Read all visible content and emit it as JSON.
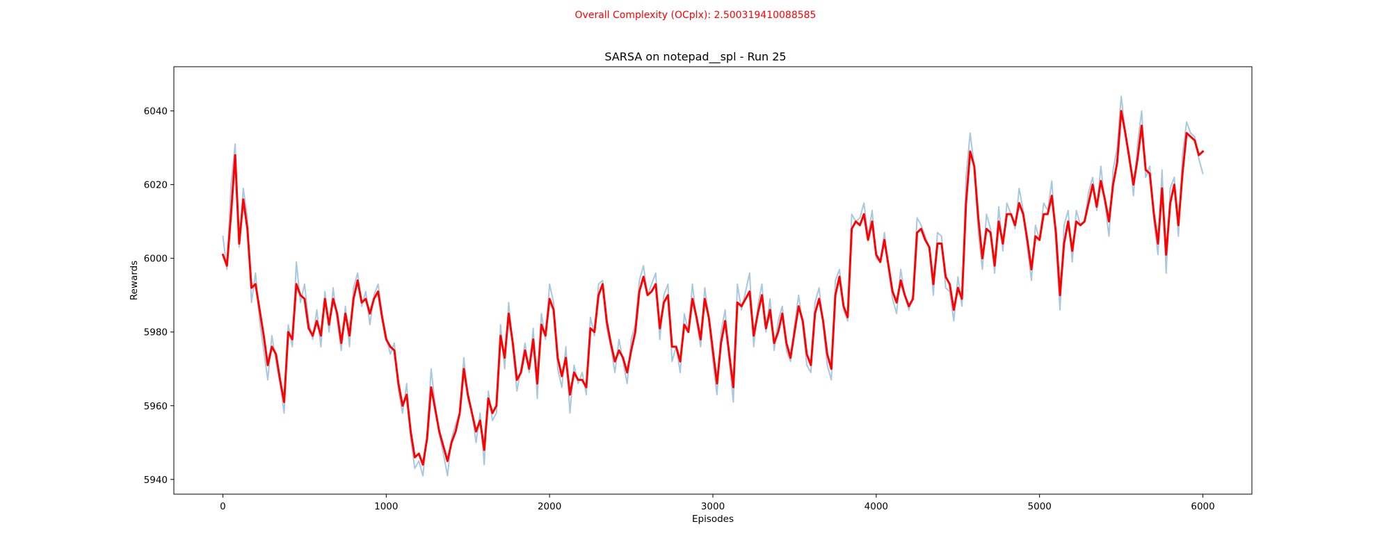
{
  "chart_data": {
    "type": "line",
    "suptitle": "Overall Complexity (OCplx): 2.500319410088585",
    "title": "SARSA on notepad__spl - Run 25",
    "xlabel": "Episodes",
    "ylabel": "Rewards",
    "xlim": [
      -300,
      6300
    ],
    "ylim": [
      5936,
      6052
    ],
    "xticks": [
      0,
      1000,
      2000,
      3000,
      4000,
      5000,
      6000
    ],
    "yticks": [
      5940,
      5960,
      5980,
      6000,
      6020,
      6040
    ],
    "colors": {
      "suptitle": "#ff0000",
      "raw": "#a8c8e0",
      "smoothed": "#ff0000",
      "axes": "#000000"
    },
    "grid": false,
    "legend": "none",
    "series": [
      {
        "role": "raw",
        "x": [
          0,
          25,
          50,
          75,
          100,
          125,
          150,
          175,
          200,
          225,
          250,
          275,
          300,
          325,
          350,
          375,
          400,
          425,
          450,
          475,
          500,
          525,
          550,
          575,
          600,
          625,
          650,
          675,
          700,
          725,
          750,
          775,
          800,
          825,
          850,
          875,
          900,
          925,
          950,
          975,
          1000,
          1025,
          1050,
          1075,
          1100,
          1125,
          1150,
          1175,
          1200,
          1225,
          1250,
          1275,
          1300,
          1325,
          1350,
          1375,
          1400,
          1425,
          1450,
          1475,
          1500,
          1525,
          1550,
          1575,
          1600,
          1625,
          1650,
          1675,
          1700,
          1725,
          1750,
          1775,
          1800,
          1825,
          1850,
          1875,
          1900,
          1925,
          1950,
          1975,
          2000,
          2025,
          2050,
          2075,
          2100,
          2125,
          2150,
          2175,
          2200,
          2225,
          2250,
          2275,
          2300,
          2325,
          2350,
          2375,
          2400,
          2425,
          2450,
          2475,
          2500,
          2525,
          2550,
          2575,
          2600,
          2625,
          2650,
          2675,
          2700,
          2725,
          2750,
          2775,
          2800,
          2825,
          2850,
          2875,
          2900,
          2925,
          2950,
          2975,
          3000,
          3025,
          3050,
          3075,
          3100,
          3125,
          3150,
          3175,
          3200,
          3225,
          3250,
          3275,
          3300,
          3325,
          3350,
          3375,
          3400,
          3425,
          3450,
          3475,
          3500,
          3525,
          3550,
          3575,
          3600,
          3625,
          3650,
          3675,
          3700,
          3725,
          3750,
          3775,
          3800,
          3825,
          3850,
          3875,
          3900,
          3925,
          3950,
          3975,
          4000,
          4025,
          4050,
          4075,
          4100,
          4125,
          4150,
          4175,
          4200,
          4225,
          4250,
          4275,
          4300,
          4325,
          4350,
          4375,
          4400,
          4425,
          4450,
          4475,
          4500,
          4525,
          4550,
          4575,
          4600,
          4625,
          4650,
          4675,
          4700,
          4725,
          4750,
          4775,
          4800,
          4825,
          4850,
          4875,
          4900,
          4925,
          4950,
          4975,
          5000,
          5025,
          5050,
          5075,
          5100,
          5125,
          5150,
          5175,
          5200,
          5225,
          5250,
          5275,
          5300,
          5325,
          5350,
          5375,
          5400,
          5425,
          5450,
          5475,
          5500,
          5525,
          5550,
          5575,
          5600,
          5625,
          5650,
          5675,
          5700,
          5725,
          5750,
          5775,
          5800,
          5825,
          5850,
          5875,
          5900,
          5925,
          5950,
          5975,
          6000
        ],
        "y": [
          6006,
          5997,
          6020,
          6031,
          6003,
          6019,
          6011,
          5988,
          5996,
          5983,
          5975,
          5967,
          5979,
          5972,
          5966,
          5958,
          5982,
          5976,
          5999,
          5988,
          5993,
          5983,
          5978,
          5986,
          5976,
          5991,
          5980,
          5992,
          5983,
          5975,
          5987,
          5976,
          5992,
          5996,
          5987,
          5991,
          5982,
          5990,
          5993,
          5985,
          5979,
          5974,
          5977,
          5964,
          5958,
          5966,
          5951,
          5943,
          5945,
          5941,
          5952,
          5970,
          5960,
          5952,
          5947,
          5941,
          5951,
          5955,
          5958,
          5973,
          5962,
          5958,
          5950,
          5958,
          5944,
          5964,
          5956,
          5958,
          5982,
          5970,
          5988,
          5976,
          5964,
          5970,
          5977,
          5969,
          5981,
          5962,
          5985,
          5978,
          5993,
          5988,
          5970,
          5965,
          5976,
          5958,
          5971,
          5966,
          5969,
          5963,
          5984,
          5979,
          5993,
          5994,
          5981,
          5976,
          5969,
          5978,
          5972,
          5966,
          5978,
          5982,
          5994,
          5998,
          5990,
          5993,
          5996,
          5978,
          5990,
          5993,
          5972,
          5976,
          5969,
          5985,
          5980,
          5993,
          5983,
          5976,
          5992,
          5984,
          5972,
          5963,
          5980,
          5986,
          5972,
          5961,
          5993,
          5986,
          5991,
          5996,
          5976,
          5987,
          5993,
          5980,
          5989,
          5975,
          5983,
          5987,
          5975,
          5972,
          5982,
          5990,
          5982,
          5971,
          5969,
          5988,
          5992,
          5982,
          5971,
          5967,
          5994,
          5997,
          5986,
          5983,
          6012,
          6010,
          6011,
          6015,
          6006,
          6013,
          6000,
          5999,
          6007,
          5997,
          5989,
          5985,
          5997,
          5990,
          5986,
          5990,
          6011,
          6009,
          6006,
          6003,
          5990,
          6007,
          6006,
          5992,
          5991,
          5983,
          5995,
          5987,
          6022,
          6034,
          6025,
          6007,
          5997,
          6012,
          6008,
          5996,
          6014,
          6002,
          6015,
          6012,
          6008,
          6019,
          6013,
          6003,
          5994,
          6009,
          6005,
          6015,
          6013,
          6021,
          6004,
          5986,
          6009,
          6013,
          5999,
          6013,
          6009,
          6010,
          6018,
          6022,
          6013,
          6025,
          6015,
          6006,
          6024,
          6030,
          6044,
          6034,
          6028,
          6017,
          6031,
          6040,
          6022,
          6025,
          6010,
          6001,
          6024,
          5996,
          6019,
          6022,
          6006,
          6028,
          6037,
          6034,
          6033,
          6027,
          6023
        ]
      },
      {
        "role": "smoothed",
        "x": [
          0,
          25,
          50,
          75,
          100,
          125,
          150,
          175,
          200,
          225,
          250,
          275,
          300,
          325,
          350,
          375,
          400,
          425,
          450,
          475,
          500,
          525,
          550,
          575,
          600,
          625,
          650,
          675,
          700,
          725,
          750,
          775,
          800,
          825,
          850,
          875,
          900,
          925,
          950,
          975,
          1000,
          1025,
          1050,
          1075,
          1100,
          1125,
          1150,
          1175,
          1200,
          1225,
          1250,
          1275,
          1300,
          1325,
          1350,
          1375,
          1400,
          1425,
          1450,
          1475,
          1500,
          1525,
          1550,
          1575,
          1600,
          1625,
          1650,
          1675,
          1700,
          1725,
          1750,
          1775,
          1800,
          1825,
          1850,
          1875,
          1900,
          1925,
          1950,
          1975,
          2000,
          2025,
          2050,
          2075,
          2100,
          2125,
          2150,
          2175,
          2200,
          2225,
          2250,
          2275,
          2300,
          2325,
          2350,
          2375,
          2400,
          2425,
          2450,
          2475,
          2500,
          2525,
          2550,
          2575,
          2600,
          2625,
          2650,
          2675,
          2700,
          2725,
          2750,
          2775,
          2800,
          2825,
          2850,
          2875,
          2900,
          2925,
          2950,
          2975,
          3000,
          3025,
          3050,
          3075,
          3100,
          3125,
          3150,
          3175,
          3200,
          3225,
          3250,
          3275,
          3300,
          3325,
          3350,
          3375,
          3400,
          3425,
          3450,
          3475,
          3500,
          3525,
          3550,
          3575,
          3600,
          3625,
          3650,
          3675,
          3700,
          3725,
          3750,
          3775,
          3800,
          3825,
          3850,
          3875,
          3900,
          3925,
          3950,
          3975,
          4000,
          4025,
          4050,
          4075,
          4100,
          4125,
          4150,
          4175,
          4200,
          4225,
          4250,
          4275,
          4300,
          4325,
          4350,
          4375,
          4400,
          4425,
          4450,
          4475,
          4500,
          4525,
          4550,
          4575,
          4600,
          4625,
          4650,
          4675,
          4700,
          4725,
          4750,
          4775,
          4800,
          4825,
          4850,
          4875,
          4900,
          4925,
          4950,
          4975,
          5000,
          5025,
          5050,
          5075,
          5100,
          5125,
          5150,
          5175,
          5200,
          5225,
          5250,
          5275,
          5300,
          5325,
          5350,
          5375,
          5400,
          5425,
          5450,
          5475,
          5500,
          5525,
          5550,
          5575,
          5600,
          5625,
          5650,
          5675,
          5700,
          5725,
          5750,
          5775,
          5800,
          5825,
          5850,
          5875,
          5900,
          5925,
          5950,
          5975,
          6000
        ],
        "y": [
          6001,
          5998,
          6012,
          6028,
          6004,
          6016,
          6008,
          5992,
          5993,
          5986,
          5979,
          5971,
          5976,
          5974,
          5967,
          5961,
          5980,
          5978,
          5993,
          5990,
          5989,
          5981,
          5979,
          5983,
          5979,
          5989,
          5982,
          5989,
          5985,
          5977,
          5985,
          5979,
          5989,
          5994,
          5988,
          5989,
          5985,
          5989,
          5991,
          5984,
          5978,
          5976,
          5975,
          5966,
          5960,
          5963,
          5953,
          5946,
          5947,
          5944,
          5951,
          5965,
          5959,
          5953,
          5949,
          5945,
          5950,
          5953,
          5958,
          5970,
          5963,
          5958,
          5953,
          5956,
          5948,
          5962,
          5958,
          5960,
          5979,
          5973,
          5985,
          5977,
          5967,
          5969,
          5975,
          5970,
          5978,
          5966,
          5982,
          5979,
          5989,
          5986,
          5973,
          5968,
          5973,
          5963,
          5969,
          5967,
          5967,
          5965,
          5981,
          5980,
          5990,
          5993,
          5983,
          5977,
          5972,
          5975,
          5973,
          5969,
          5975,
          5980,
          5991,
          5995,
          5990,
          5991,
          5993,
          5981,
          5988,
          5990,
          5976,
          5976,
          5972,
          5982,
          5980,
          5989,
          5984,
          5978,
          5989,
          5984,
          5975,
          5966,
          5977,
          5983,
          5974,
          5965,
          5988,
          5987,
          5989,
          5991,
          5979,
          5985,
          5990,
          5981,
          5986,
          5977,
          5980,
          5985,
          5977,
          5973,
          5980,
          5987,
          5983,
          5974,
          5971,
          5985,
          5989,
          5983,
          5974,
          5970,
          5990,
          5995,
          5987,
          5984,
          6008,
          6010,
          6009,
          6012,
          6005,
          6010,
          6001,
          5999,
          6005,
          5998,
          5991,
          5988,
          5994,
          5990,
          5987,
          5989,
          6007,
          6008,
          6005,
          6003,
          5993,
          6004,
          6004,
          5995,
          5993,
          5986,
          5992,
          5989,
          6015,
          6029,
          6025,
          6011,
          6000,
          6008,
          6007,
          5998,
          6010,
          6004,
          6012,
          6012,
          6009,
          6015,
          6012,
          6005,
          5997,
          6006,
          6005,
          6012,
          6012,
          6017,
          6007,
          5990,
          6004,
          6010,
          6002,
          6010,
          6009,
          6010,
          6015,
          6020,
          6014,
          6021,
          6016,
          6010,
          6020,
          6026,
          6040,
          6034,
          6027,
          6020,
          6027,
          6036,
          6024,
          6023,
          6012,
          6004,
          6019,
          6001,
          6015,
          6020,
          6009,
          6023,
          6034,
          6033,
          6032,
          6028,
          6029
        ]
      }
    ]
  }
}
